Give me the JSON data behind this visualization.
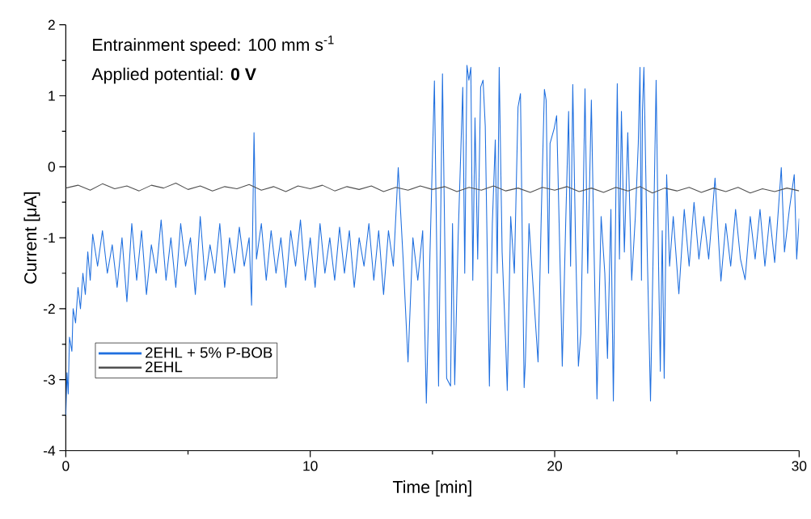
{
  "chart_data": {
    "type": "line",
    "xlabel": "Time [min]",
    "ylabel": "Current [μA]",
    "annotations": [
      "Entrainment speed: 100 mm s$^{-1}$",
      "Applied potential: **0 V**"
    ],
    "xlim": [
      0,
      30
    ],
    "xticks": [
      0,
      10,
      20,
      30
    ],
    "ylim": [
      -4,
      2
    ],
    "yticks": [
      -4,
      -3,
      -2,
      -1,
      0,
      1,
      2
    ],
    "grid": false,
    "legend": "bottom left",
    "marker": "none",
    "line_style": "solid",
    "series": [
      {
        "name": "2EHL + 5% P-BOB",
        "color": "#1f6fdf",
        "x": [
          0,
          0.05,
          0.1,
          0.15,
          0.25,
          0.3,
          0.4,
          0.5,
          0.6,
          0.7,
          0.8,
          0.9,
          1.0,
          1.1,
          1.3,
          1.5,
          1.7,
          1.9,
          2.1,
          2.3,
          2.5,
          2.7,
          2.9,
          3.1,
          3.3,
          3.5,
          3.7,
          3.9,
          4.1,
          4.3,
          4.5,
          4.7,
          4.9,
          5.1,
          5.3,
          5.5,
          5.7,
          5.9,
          6.1,
          6.3,
          6.5,
          6.7,
          6.9,
          7.1,
          7.3,
          7.5,
          7.6,
          7.7,
          7.8,
          8.0,
          8.2,
          8.4,
          8.6,
          8.8,
          9.0,
          9.2,
          9.4,
          9.6,
          9.8,
          10.0,
          10.2,
          10.4,
          10.6,
          10.8,
          11.0,
          11.2,
          11.4,
          11.6,
          11.8,
          12.0,
          12.2,
          12.4,
          12.6,
          12.8,
          13.0,
          13.2,
          13.4,
          13.6,
          13.8,
          14.0,
          14.2,
          14.4,
          14.6,
          14.75,
          14.9,
          15.08,
          15.25,
          15.41,
          15.58,
          15.74,
          15.82,
          15.91,
          16.05,
          16.24,
          16.32,
          16.41,
          16.49,
          16.57,
          16.65,
          16.74,
          16.85,
          16.97,
          17.07,
          17.16,
          17.25,
          17.33,
          17.45,
          17.57,
          17.65,
          17.73,
          17.85,
          18.0,
          18.06,
          18.2,
          18.35,
          18.5,
          18.6,
          18.75,
          18.8,
          18.95,
          19.1,
          19.32,
          19.45,
          19.58,
          19.65,
          19.75,
          19.81,
          19.98,
          20.08,
          20.25,
          20.31,
          20.45,
          20.57,
          20.65,
          20.74,
          20.85,
          20.97,
          21.07,
          21.15,
          21.24,
          21.35,
          21.5,
          21.6,
          21.73,
          21.9,
          22.05,
          22.16,
          22.3,
          22.4,
          22.56,
          22.65,
          22.73,
          22.85,
          22.99,
          23.15,
          23.3,
          23.42,
          23.49,
          23.55,
          23.59,
          23.65,
          23.78,
          23.92,
          24.05,
          24.15,
          24.25,
          24.32,
          24.4,
          24.48,
          24.58,
          24.7,
          24.85,
          25.08,
          25.3,
          25.5,
          25.7,
          25.9,
          26.1,
          26.3,
          26.56,
          26.8,
          27.0,
          27.2,
          27.4,
          27.6,
          27.79,
          28.0,
          28.2,
          28.4,
          28.6,
          28.8,
          29.0,
          29.27,
          29.4,
          29.6,
          29.8,
          29.9,
          30
        ],
        "values": [
          -3.5,
          -2.9,
          -3.2,
          -2.4,
          -2.6,
          -2.0,
          -2.2,
          -1.7,
          -2.0,
          -1.5,
          -1.8,
          -1.2,
          -1.6,
          -0.95,
          -1.4,
          -0.9,
          -1.5,
          -1.1,
          -1.7,
          -1.0,
          -1.9,
          -0.8,
          -1.6,
          -0.9,
          -1.8,
          -1.1,
          -1.5,
          -0.75,
          -1.6,
          -1.0,
          -1.7,
          -0.8,
          -1.4,
          -1.0,
          -1.8,
          -0.7,
          -1.6,
          -1.1,
          -1.5,
          -0.8,
          -1.7,
          -1.0,
          -1.5,
          -0.85,
          -1.4,
          -1.0,
          -1.95,
          0.48,
          -1.3,
          -0.8,
          -1.6,
          -0.9,
          -1.5,
          -1.0,
          -1.7,
          -0.9,
          -1.4,
          -0.75,
          -1.6,
          -1.0,
          -1.7,
          -0.8,
          -1.5,
          -1.0,
          -1.6,
          -0.85,
          -1.5,
          -0.9,
          -1.7,
          -1.0,
          -1.4,
          -0.8,
          -1.6,
          -0.9,
          -1.8,
          -0.9,
          -1.4,
          -0.01,
          -1.3,
          -2.75,
          -1.0,
          -1.6,
          -0.9,
          -3.33,
          -1.2,
          1.21,
          -3.09,
          1.31,
          -2.98,
          -3.09,
          -0.8,
          -3.07,
          -1.0,
          1.12,
          -1.5,
          1.43,
          1.22,
          1.4,
          -1.6,
          0.69,
          -1.3,
          1.12,
          1.22,
          0.57,
          -1.4,
          -3.09,
          -0.8,
          0.38,
          -1.5,
          1.4,
          -1.2,
          -2.53,
          -3.15,
          -0.7,
          -1.5,
          0.84,
          1.03,
          -3.11,
          -2.75,
          -0.8,
          -1.6,
          -2.75,
          -0.7,
          1.09,
          0.94,
          -1.5,
          0.33,
          0.54,
          0.72,
          -1.81,
          -2.81,
          -0.8,
          0.78,
          -1.4,
          1.16,
          -1.0,
          -2.81,
          -2.35,
          -0.8,
          1.1,
          -1.5,
          0.94,
          -1.0,
          -3.27,
          -0.7,
          -1.5,
          -2.7,
          -0.6,
          -3.3,
          1.17,
          -1.3,
          0.78,
          -1.2,
          0.48,
          -1.6,
          -0.7,
          0.33,
          1.4,
          -1.6,
          0.78,
          1.4,
          -1.1,
          -3.3,
          -0.8,
          1.22,
          -1.4,
          -2.88,
          -0.9,
          -2.98,
          -0.11,
          -1.4,
          -0.7,
          -1.79,
          -0.6,
          -1.4,
          -0.5,
          -1.3,
          -0.7,
          -1.3,
          -0.16,
          -1.61,
          -0.8,
          -1.4,
          -0.6,
          -1.3,
          -1.59,
          -0.7,
          -1.3,
          -0.6,
          -1.4,
          -0.7,
          -1.35,
          -0.01,
          -1.2,
          -0.6,
          -0.11,
          -1.3,
          -0.73
        ]
      },
      {
        "name": "2EHL",
        "color": "#505050",
        "x": [
          0,
          0.5,
          1,
          1.5,
          2,
          2.5,
          3,
          3.5,
          4,
          4.5,
          5,
          5.5,
          6,
          6.5,
          7,
          7.5,
          8,
          8.5,
          9,
          9.5,
          10,
          10.5,
          11,
          11.5,
          12,
          12.5,
          13,
          13.5,
          14,
          14.5,
          15,
          15.5,
          16,
          16.5,
          17,
          17.5,
          18,
          18.5,
          19,
          19.5,
          20,
          20.5,
          21,
          21.5,
          22,
          22.5,
          23,
          23.5,
          24,
          24.5,
          25,
          25.5,
          26,
          26.5,
          27,
          27.5,
          28,
          28.5,
          29,
          29.5,
          30
        ],
        "values": [
          -0.3,
          -0.26,
          -0.33,
          -0.24,
          -0.31,
          -0.27,
          -0.34,
          -0.26,
          -0.3,
          -0.23,
          -0.32,
          -0.27,
          -0.34,
          -0.28,
          -0.31,
          -0.25,
          -0.33,
          -0.28,
          -0.35,
          -0.27,
          -0.31,
          -0.26,
          -0.34,
          -0.28,
          -0.32,
          -0.27,
          -0.35,
          -0.29,
          -0.33,
          -0.27,
          -0.32,
          -0.28,
          -0.35,
          -0.29,
          -0.33,
          -0.27,
          -0.34,
          -0.3,
          -0.36,
          -0.29,
          -0.33,
          -0.28,
          -0.35,
          -0.3,
          -0.36,
          -0.29,
          -0.34,
          -0.28,
          -0.37,
          -0.3,
          -0.34,
          -0.29,
          -0.36,
          -0.3,
          -0.35,
          -0.29,
          -0.37,
          -0.31,
          -0.35,
          -0.3,
          -0.34
        ]
      }
    ]
  }
}
